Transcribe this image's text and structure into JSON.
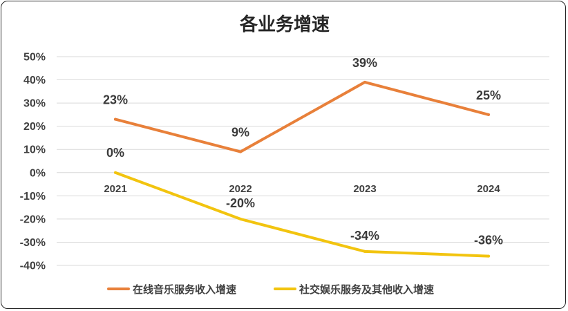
{
  "chart_data": {
    "type": "line",
    "title": "各业务增速",
    "xlabel": "",
    "ylabel": "",
    "categories": [
      "2021",
      "2022",
      "2023",
      "2024"
    ],
    "ylim": [
      -40,
      50
    ],
    "yticks": [
      50,
      40,
      30,
      20,
      10,
      0,
      -10,
      -20,
      -30,
      -40
    ],
    "ytick_labels": [
      "50%",
      "40%",
      "30%",
      "20%",
      "10%",
      "0%",
      "-10%",
      "-20%",
      "-30%",
      "-40%"
    ],
    "grid": true,
    "legend_position": "bottom",
    "series": [
      {
        "name": "在线音乐服务收入增速",
        "color": "#E8803A",
        "values": [
          23,
          9,
          39,
          25
        ],
        "labels": [
          "23%",
          "9%",
          "39%",
          "25%"
        ]
      },
      {
        "name": "社交娱乐服务及其他收入增速",
        "color": "#F2C40F",
        "values": [
          0,
          -20,
          -34,
          -36
        ],
        "labels": [
          "0%",
          "-20%",
          "-34%",
          "-36%"
        ]
      }
    ]
  }
}
